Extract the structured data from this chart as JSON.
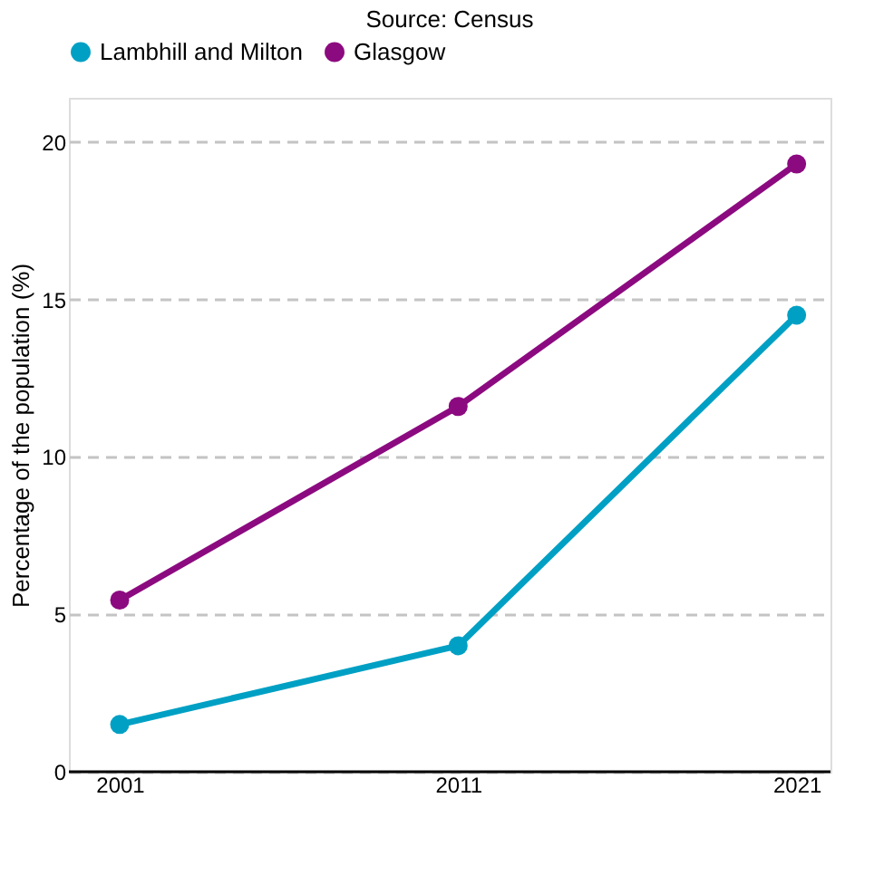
{
  "chart_data": {
    "type": "line",
    "title": "Source: Census",
    "ylabel": "Percentage of the population (%)",
    "x": [
      2001,
      2011,
      2021
    ],
    "series": [
      {
        "name": "Lambhill and Milton",
        "color": "#00a0c4",
        "values": [
          1.5,
          4.0,
          14.5
        ]
      },
      {
        "name": "Glasgow",
        "color": "#8c0a80",
        "values": [
          5.45,
          11.6,
          19.3
        ]
      }
    ],
    "xlim": [
      1999.5,
      2022
    ],
    "xticks": [
      2001,
      2011,
      2021
    ],
    "ylim": [
      0,
      21.4
    ],
    "yticks": [
      0,
      5,
      10,
      15,
      20
    ],
    "grid": "y",
    "legend": "top",
    "marker": "circle",
    "line_style": "solid"
  }
}
